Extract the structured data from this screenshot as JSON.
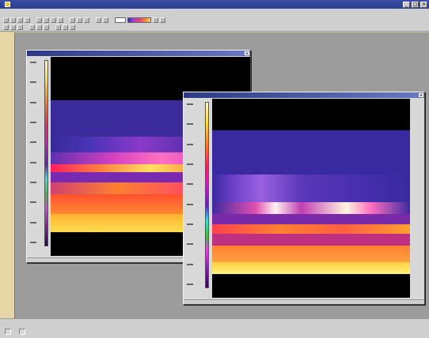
{
  "app": {
    "title": "",
    "menus": [
      "",
      "",
      "",
      "",
      "",
      "",
      "",
      "",
      "",
      "",
      ""
    ]
  },
  "windows": [
    {
      "title": "",
      "status": ""
    },
    {
      "title": "",
      "status": ""
    }
  ],
  "statusbar": {
    "left_row1": "",
    "left_row2": [
      "",
      ""
    ],
    "right_row1": "",
    "right_row2": ""
  },
  "colors": {
    "title_bar": "#2a3f92",
    "workspace": "#9c9c9c",
    "window_frame": "#d8d8d8",
    "palette": [
      "#300060",
      "#6020c0",
      "#c020c0",
      "#ff2060",
      "#ff8020",
      "#ffe040",
      "#fff8d0"
    ]
  },
  "icons": {
    "toolbar_row1": [
      "new-icon",
      "open-icon",
      "save-icon",
      "print-icon",
      "copy-icon",
      "paste-icon",
      "undo-icon",
      "redo-icon",
      "cursor-icon",
      "zoom-in-icon",
      "zoom-out-icon",
      "palette-icon",
      "histogram-icon",
      "settings-icon",
      "help-icon"
    ],
    "toolbar_row2": [
      "spot-icon",
      "line-icon",
      "box-icon",
      "ellipse-icon",
      "polygon-icon",
      "isotherm-icon",
      "text-icon",
      "measure-icon",
      "grid-icon"
    ]
  }
}
